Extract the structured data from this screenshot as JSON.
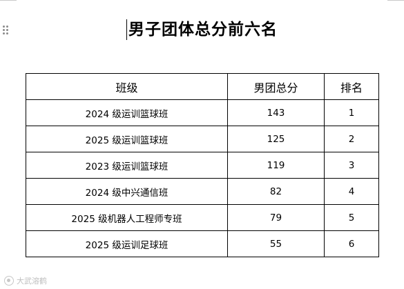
{
  "document": {
    "title": "男子团体总分前六名"
  },
  "table": {
    "headers": {
      "class": "班级",
      "score": "男团总分",
      "rank": "排名"
    },
    "rows": [
      {
        "class": "2024 级运训篮球班",
        "score": "143",
        "rank": "1"
      },
      {
        "class": "2025 级运训篮球班",
        "score": "125",
        "rank": "2"
      },
      {
        "class": "2023 级运训篮球班",
        "score": "119",
        "rank": "3"
      },
      {
        "class": "2024 级中兴通信班",
        "score": "82",
        "rank": "4"
      },
      {
        "class": "2025 级机器人工程师专班",
        "score": "79",
        "rank": "5"
      },
      {
        "class": "2025 级运训足球班",
        "score": "55",
        "rank": "6"
      }
    ]
  },
  "watermark": {
    "icon": "watermark-logo-icon",
    "text": "大武溶鹤"
  }
}
